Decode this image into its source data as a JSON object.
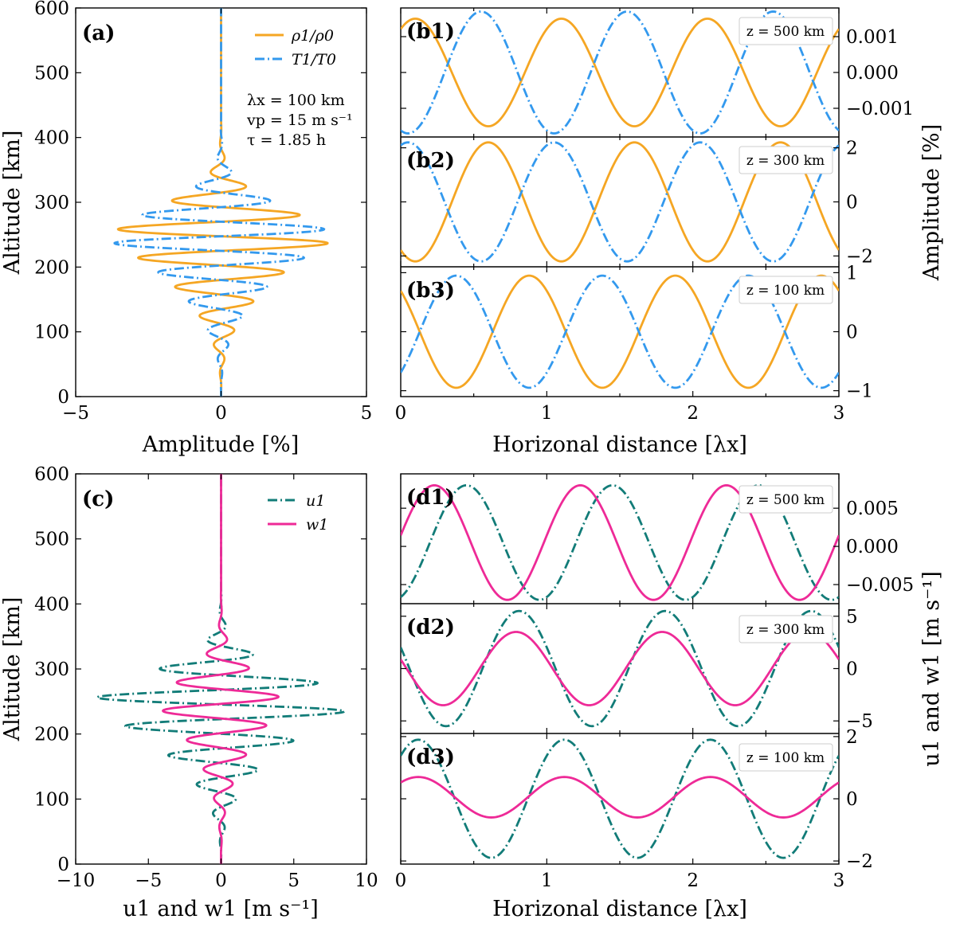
{
  "colors": {
    "rho": "#f5a623",
    "T": "#3399ee",
    "u": "#127c78",
    "w": "#ee2a97"
  },
  "panel_a": {
    "label": "(a)",
    "xlabel": "Amplitude [%]",
    "ylabel": "Altitude [km]",
    "legend": {
      "rho": "ρ1/ρ0",
      "T": "T1/T0"
    },
    "params": [
      "λx = 100 km",
      "vp = 15 m s⁻¹",
      "τ = 1.85 h"
    ]
  },
  "panel_b": {
    "xlabel": "Horizonal distance [λx]",
    "ylabel": "Amplitude [%]",
    "subpanels": [
      {
        "label": "(b1)",
        "z": "z = 500 km"
      },
      {
        "label": "(b2)",
        "z": "z = 300 km"
      },
      {
        "label": "(b3)",
        "z": "z = 100 km"
      }
    ]
  },
  "panel_c": {
    "label": "(c)",
    "xlabel": "u1 and w1 [m s⁻¹]",
    "ylabel": "Altitude [km]",
    "legend": {
      "u": "u1",
      "w": "w1"
    }
  },
  "panel_d": {
    "xlabel": "Horizonal distance [λx]",
    "ylabel": "u1 and w1 [m s⁻¹]",
    "subpanels": [
      {
        "label": "(d1)",
        "z": "z = 500 km"
      },
      {
        "label": "(d2)",
        "z": "z = 300 km"
      },
      {
        "label": "(d3)",
        "z": "z = 100 km"
      }
    ]
  },
  "chart_data": [
    {
      "id": "a",
      "type": "line",
      "xlim": [
        -5,
        5
      ],
      "ylim": [
        0,
        600
      ],
      "xticks": [
        -5,
        0,
        5
      ],
      "yticks": [
        0,
        100,
        200,
        300,
        400,
        500,
        600
      ],
      "envelope_peak_altitude": 240,
      "peak_amplitude": 3.8,
      "vertical_wavelength": 45,
      "amplitude_vanishes_above": 410,
      "series": [
        {
          "key": "rho",
          "name": "ρ1/ρ0",
          "phase": 0
        },
        {
          "key": "T",
          "name": "T1/T0",
          "phase": 3.14159
        }
      ]
    },
    {
      "id": "b1",
      "type": "line",
      "xlim": [
        0,
        3
      ],
      "ylim": [
        -0.0018,
        0.0018
      ],
      "yticks": [
        -0.001,
        0.0,
        0.001
      ],
      "ytick_labels": [
        "−0.001",
        "0.000",
        "0.001"
      ],
      "series": [
        {
          "key": "rho",
          "amplitude": 0.0015,
          "crest_x": 0.1
        },
        {
          "key": "T",
          "amplitude": 0.0017,
          "crest_x": 0.55
        }
      ]
    },
    {
      "id": "b2",
      "type": "line",
      "xlim": [
        0,
        3
      ],
      "ylim": [
        -2.4,
        2.4
      ],
      "yticks": [
        -2,
        0,
        2
      ],
      "series": [
        {
          "key": "rho",
          "amplitude": 2.2,
          "crest_x": 0.6
        },
        {
          "key": "T",
          "amplitude": 2.2,
          "crest_x": 0.05
        }
      ]
    },
    {
      "id": "b3",
      "type": "line",
      "xlim": [
        0,
        3
      ],
      "ylim": [
        -1.1,
        1.1
      ],
      "yticks": [
        -1,
        0,
        1
      ],
      "series": [
        {
          "key": "rho",
          "amplitude": 0.95,
          "crest_x": 0.88
        },
        {
          "key": "T",
          "amplitude": 0.95,
          "crest_x": 0.38
        }
      ]
    },
    {
      "id": "c",
      "type": "line",
      "xlim": [
        -10,
        10
      ],
      "ylim": [
        0,
        600
      ],
      "xticks": [
        -10,
        -5,
        0,
        5,
        10
      ],
      "yticks": [
        0,
        100,
        200,
        300,
        400,
        500,
        600
      ],
      "envelope_peak_altitude": 240,
      "vertical_wavelength": 45,
      "series": [
        {
          "key": "u",
          "name": "u1",
          "peak_amplitude": 9.0,
          "phase": 0.3
        },
        {
          "key": "w",
          "name": "w1",
          "peak_amplitude": 4.2,
          "phase": 3.3
        }
      ]
    },
    {
      "id": "d1",
      "type": "line",
      "xlim": [
        0,
        3
      ],
      "ylim": [
        -0.0075,
        0.0095
      ],
      "yticks": [
        -0.005,
        0.0,
        0.005
      ],
      "ytick_labels": [
        "−0.005",
        "0.000",
        "0.005"
      ],
      "series": [
        {
          "key": "u",
          "amplitude": 0.0075,
          "offset": 0.0005,
          "crest_x": 0.45
        },
        {
          "key": "w",
          "amplitude": 0.0075,
          "offset": 0.0005,
          "crest_x": 0.23
        }
      ]
    },
    {
      "id": "d2",
      "type": "line",
      "xlim": [
        0,
        3
      ],
      "ylim": [
        -6.2,
        6.2
      ],
      "yticks": [
        -5,
        0,
        5
      ],
      "series": [
        {
          "key": "u",
          "amplitude": 5.5,
          "crest_x": 0.81
        },
        {
          "key": "w",
          "amplitude": 3.5,
          "crest_x": 0.79
        }
      ]
    },
    {
      "id": "d3",
      "type": "line",
      "xlim": [
        0,
        3
      ],
      "ylim": [
        -2.1,
        2.1
      ],
      "yticks": [
        -2,
        0,
        2
      ],
      "series": [
        {
          "key": "u",
          "amplitude": 1.9,
          "crest_x": 0.12
        },
        {
          "key": "w",
          "amplitude": 0.65,
          "offset": 0.05,
          "crest_x": 0.12
        }
      ]
    }
  ]
}
